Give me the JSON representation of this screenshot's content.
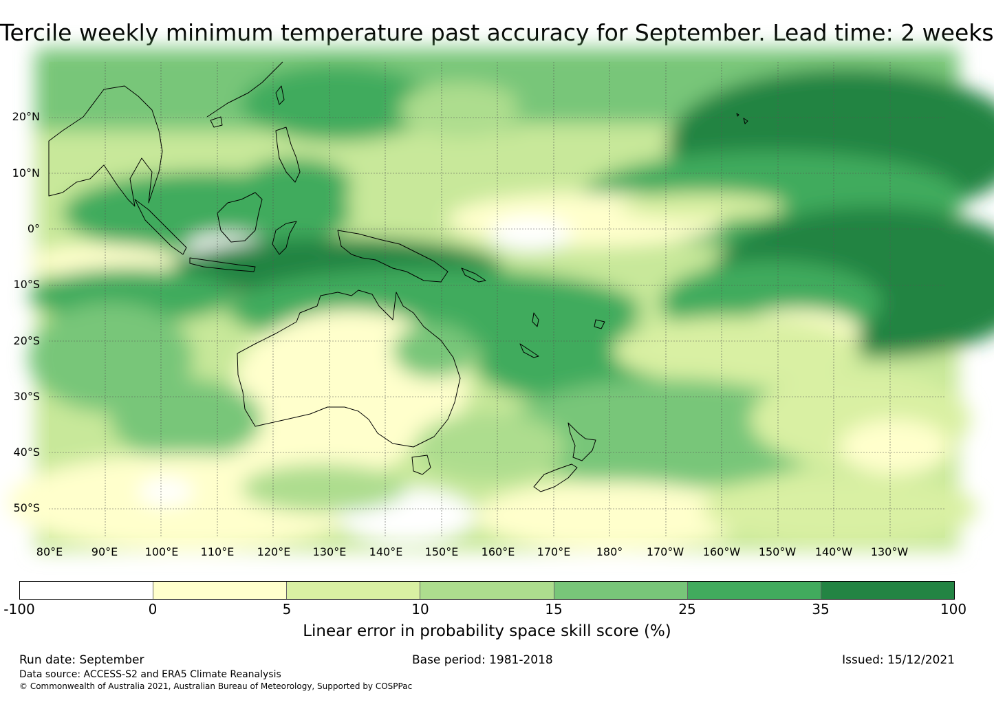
{
  "title": "Tercile weekly minimum temperature past accuracy for September. Lead time: 2 weeks",
  "map": {
    "lat_labels": [
      "20°N",
      "10°N",
      "0°",
      "10°S",
      "20°S",
      "30°S",
      "40°S",
      "50°S"
    ],
    "lon_labels": [
      "80°E",
      "90°E",
      "100°E",
      "110°E",
      "120°E",
      "130°E",
      "140°E",
      "150°E",
      "160°E",
      "170°E",
      "180°",
      "170°W",
      "160°W",
      "150°W",
      "140°W",
      "130°W"
    ],
    "places": [
      "Australia",
      "New Zealand",
      "Papua New Guinea",
      "Indonesia",
      "Philippines",
      "Hawaii"
    ]
  },
  "colorbar": {
    "ticks": [
      "-100",
      "0",
      "5",
      "10",
      "15",
      "25",
      "35",
      "100"
    ],
    "colors": [
      "#ffffff",
      "#ffffcc",
      "#d9f0a3",
      "#addd8e",
      "#78c679",
      "#41ab5d",
      "#238443"
    ],
    "label": "Linear error in probability space skill score (%)"
  },
  "footer": {
    "run_date": "Run date: September",
    "base_period": "Base period: 1981-2018",
    "issued": "Issued: 15/12/2021",
    "data_source": "Data source: ACCESS-S2 and ERA5 Climate Reanalysis",
    "copyright": "© Commonwealth of Australia 2021, Australian Bureau of Meteorology, Supported by COSPPac"
  }
}
